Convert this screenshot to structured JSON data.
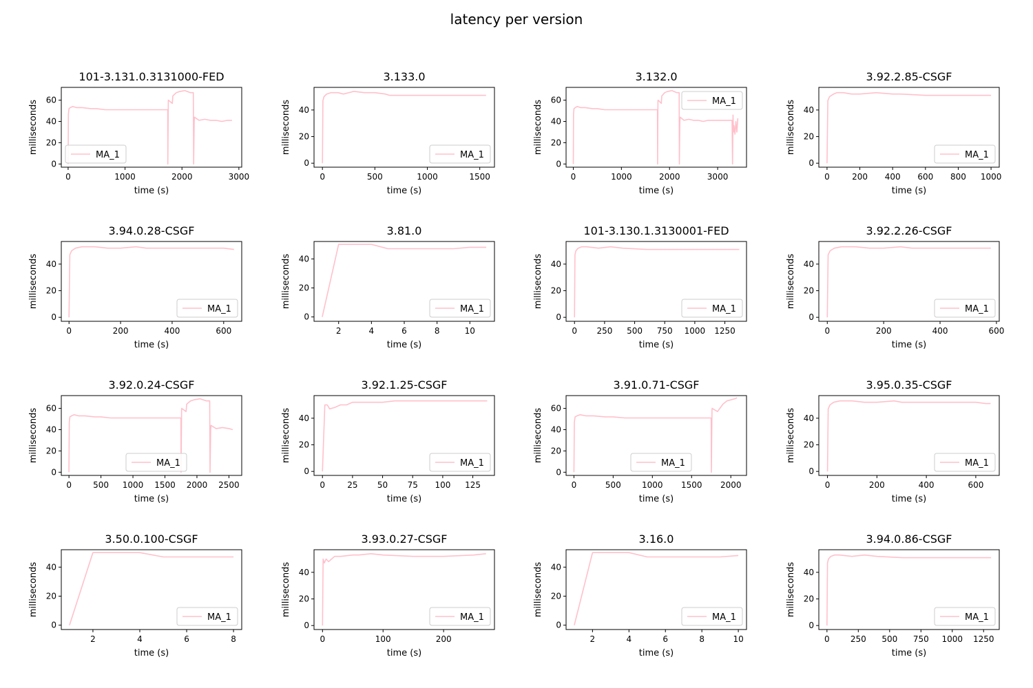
{
  "figure": {
    "title": "latency per version"
  },
  "colors": {
    "series": "#ffc0cb",
    "axes": "#000000",
    "legend_border": "#cccccc"
  },
  "chart_data": [
    {
      "type": "line",
      "title": "101-3.131.0.3131000-FED",
      "xlabel": "time (s)",
      "ylabel": "milliseconds",
      "xlim": [
        -120,
        3050
      ],
      "ylim": [
        -3,
        72
      ],
      "xticks": [
        0,
        1000,
        2000,
        3000
      ],
      "yticks": [
        0,
        20,
        40,
        60
      ],
      "legend": "lower-left",
      "series": [
        {
          "name": "MA_1",
          "x": [
            0,
            5,
            15,
            40,
            80,
            150,
            250,
            400,
            500,
            650,
            1750,
            1752,
            1760,
            1762,
            1830,
            1840,
            1900,
            1950,
            2050,
            2150,
            2200,
            2205,
            2215,
            2220,
            2300,
            2400,
            2500,
            2600,
            2700,
            2800,
            2880
          ],
          "y": [
            0,
            47,
            52,
            53,
            54,
            53,
            53,
            52,
            52,
            51,
            51,
            0,
            59,
            60,
            57,
            64,
            67,
            68,
            69,
            67,
            67,
            0,
            40,
            44,
            41,
            42,
            41,
            41,
            40,
            41,
            41
          ]
        }
      ]
    },
    {
      "type": "line",
      "title": "3.133.0",
      "xlabel": "time (s)",
      "ylabel": "milliseconds",
      "xlim": [
        -80,
        1640
      ],
      "ylim": [
        -3,
        57
      ],
      "xticks": [
        0,
        500,
        1000,
        1500
      ],
      "yticks": [
        0,
        20,
        40
      ],
      "legend": "lower-right",
      "series": [
        {
          "name": "MA_1",
          "x": [
            0,
            5,
            15,
            40,
            80,
            150,
            200,
            300,
            400,
            500,
            600,
            640,
            800,
            1000,
            1200,
            1400,
            1560
          ],
          "y": [
            0,
            47,
            50,
            52,
            53,
            53,
            52,
            54,
            53,
            53,
            52,
            51,
            51,
            51,
            51,
            51,
            51
          ]
        }
      ]
    },
    {
      "type": "line",
      "title": "3.132.0",
      "xlabel": "time (s)",
      "ylabel": "milliseconds",
      "xlim": [
        -150,
        3600
      ],
      "ylim": [
        -3,
        72
      ],
      "xticks": [
        0,
        1000,
        2000,
        3000
      ],
      "yticks": [
        0,
        20,
        40,
        60
      ],
      "legend": "upper-right",
      "series": [
        {
          "name": "MA_1",
          "x": [
            0,
            5,
            15,
            40,
            80,
            150,
            250,
            400,
            500,
            650,
            1750,
            1752,
            1760,
            1762,
            1830,
            1840,
            1900,
            1950,
            2050,
            2150,
            2200,
            2205,
            2215,
            2220,
            2300,
            2400,
            2500,
            2600,
            2700,
            2800,
            3000,
            3200,
            3300,
            3310,
            3320,
            3330,
            3340,
            3360,
            3380,
            3400,
            3420
          ],
          "y": [
            0,
            47,
            52,
            53,
            54,
            53,
            53,
            52,
            52,
            51,
            51,
            0,
            59,
            60,
            57,
            64,
            67,
            68,
            69,
            67,
            67,
            0,
            40,
            44,
            41,
            42,
            41,
            41,
            40,
            41,
            41,
            41,
            41,
            0,
            46,
            30,
            36,
            28,
            40,
            30,
            43
          ]
        }
      ]
    },
    {
      "type": "line",
      "title": "3.92.2.85-CSGF",
      "xlabel": "time (s)",
      "ylabel": "milliseconds",
      "xlim": [
        -50,
        1050
      ],
      "ylim": [
        -3,
        57
      ],
      "xticks": [
        0,
        200,
        400,
        600,
        800,
        1000
      ],
      "yticks": [
        0,
        20,
        40
      ],
      "legend": "lower-right",
      "series": [
        {
          "name": "MA_1",
          "x": [
            0,
            5,
            15,
            40,
            60,
            100,
            150,
            200,
            300,
            400,
            450,
            600,
            700,
            800,
            1000
          ],
          "y": [
            0,
            47,
            50,
            52,
            53,
            53,
            52,
            52,
            53,
            52,
            52,
            51,
            51,
            51,
            51
          ]
        }
      ]
    },
    {
      "type": "line",
      "title": "3.94.0.28-CSGF",
      "xlabel": "time (s)",
      "ylabel": "milliseconds",
      "xlim": [
        -30,
        670
      ],
      "ylim": [
        -3,
        57
      ],
      "xticks": [
        0,
        200,
        400,
        600
      ],
      "yticks": [
        0,
        20,
        40
      ],
      "legend": "lower-right",
      "series": [
        {
          "name": "MA_1",
          "x": [
            0,
            3,
            10,
            25,
            50,
            100,
            150,
            200,
            260,
            300,
            400,
            500,
            600,
            640
          ],
          "y": [
            0,
            47,
            50,
            52,
            53,
            53,
            52,
            52,
            53,
            52,
            52,
            52,
            52,
            51
          ]
        }
      ]
    },
    {
      "type": "line",
      "title": "3.81.0",
      "xlabel": "time (s)",
      "ylabel": "milliseconds",
      "xlim": [
        0.5,
        11.5
      ],
      "ylim": [
        -3,
        52
      ],
      "xticks": [
        2,
        4,
        6,
        8,
        10
      ],
      "yticks": [
        0,
        20,
        40
      ],
      "legend": "lower-right",
      "series": [
        {
          "name": "MA_1",
          "x": [
            1,
            2,
            3,
            4,
            5,
            6,
            7,
            8,
            9,
            10,
            11
          ],
          "y": [
            0,
            50,
            50,
            50,
            47,
            47,
            47,
            47,
            47,
            48,
            48
          ]
        }
      ]
    },
    {
      "type": "line",
      "title": "101-3.130.1.3130001-FED",
      "xlabel": "time (s)",
      "ylabel": "milliseconds",
      "xlim": [
        -70,
        1430
      ],
      "ylim": [
        -3,
        57
      ],
      "xticks": [
        0,
        250,
        500,
        750,
        1000,
        1250
      ],
      "yticks": [
        0,
        20,
        40
      ],
      "legend": "lower-right",
      "series": [
        {
          "name": "MA_1",
          "x": [
            0,
            4,
            12,
            30,
            60,
            100,
            200,
            300,
            400,
            600,
            800,
            1000,
            1200,
            1370
          ],
          "y": [
            0,
            47,
            50,
            52,
            53,
            53,
            52,
            53,
            52,
            51,
            51,
            51,
            51,
            51
          ]
        }
      ]
    },
    {
      "type": "line",
      "title": "3.92.2.26-CSGF",
      "xlabel": "time (s)",
      "ylabel": "milliseconds",
      "xlim": [
        -30,
        610
      ],
      "ylim": [
        -3,
        57
      ],
      "xticks": [
        0,
        200,
        400,
        600
      ],
      "yticks": [
        0,
        20,
        40
      ],
      "legend": "lower-right",
      "series": [
        {
          "name": "MA_1",
          "x": [
            0,
            3,
            10,
            25,
            50,
            100,
            150,
            200,
            260,
            300,
            400,
            500,
            580
          ],
          "y": [
            0,
            47,
            50,
            52,
            53,
            53,
            52,
            52,
            53,
            52,
            52,
            52,
            52
          ]
        }
      ]
    },
    {
      "type": "line",
      "title": "3.92.0.24-CSGF",
      "xlabel": "time (s)",
      "ylabel": "milliseconds",
      "xlim": [
        -120,
        2700
      ],
      "ylim": [
        -3,
        72
      ],
      "xticks": [
        0,
        500,
        1000,
        1500,
        2000,
        2500
      ],
      "yticks": [
        0,
        20,
        40,
        60
      ],
      "legend": "lower-center",
      "series": [
        {
          "name": "MA_1",
          "x": [
            0,
            5,
            15,
            40,
            80,
            150,
            250,
            400,
            500,
            650,
            1750,
            1752,
            1760,
            1762,
            1830,
            1840,
            1900,
            1950,
            2050,
            2150,
            2200,
            2205,
            2215,
            2220,
            2300,
            2400,
            2500,
            2560
          ],
          "y": [
            0,
            47,
            52,
            53,
            54,
            53,
            53,
            52,
            52,
            51,
            51,
            0,
            59,
            60,
            57,
            64,
            67,
            68,
            69,
            67,
            67,
            0,
            40,
            44,
            41,
            42,
            41,
            40
          ]
        }
      ]
    },
    {
      "type": "line",
      "title": "3.92.1.25-CSGF",
      "xlabel": "time (s)",
      "ylabel": "milliseconds",
      "xlim": [
        -7,
        143
      ],
      "ylim": [
        -3,
        57
      ],
      "xticks": [
        0,
        25,
        50,
        75,
        100,
        125
      ],
      "yticks": [
        0,
        20,
        40
      ],
      "legend": "lower-right",
      "series": [
        {
          "name": "MA_1",
          "x": [
            0,
            2,
            4,
            6,
            10,
            15,
            20,
            25,
            30,
            40,
            50,
            60,
            70,
            80,
            90,
            100,
            110,
            120,
            130,
            137
          ],
          "y": [
            0,
            50,
            50,
            47,
            48,
            50,
            50,
            52,
            52,
            52,
            52,
            53,
            53,
            53,
            53,
            53,
            53,
            53,
            53,
            53
          ]
        }
      ]
    },
    {
      "type": "line",
      "title": "3.91.0.71-CSGF",
      "xlabel": "time (s)",
      "ylabel": "milliseconds",
      "xlim": [
        -100,
        2200
      ],
      "ylim": [
        -3,
        72
      ],
      "xticks": [
        0,
        500,
        1000,
        1500,
        2000
      ],
      "yticks": [
        0,
        20,
        40,
        60
      ],
      "legend": "lower-center",
      "series": [
        {
          "name": "MA_1",
          "x": [
            0,
            5,
            15,
            40,
            80,
            150,
            250,
            400,
            500,
            650,
            1750,
            1752,
            1760,
            1762,
            1830,
            1840,
            1900,
            1950,
            2000,
            2050,
            2080
          ],
          "y": [
            0,
            47,
            52,
            53,
            54,
            53,
            53,
            52,
            52,
            51,
            51,
            0,
            59,
            60,
            57,
            58,
            64,
            67,
            68,
            69,
            70
          ]
        }
      ]
    },
    {
      "type": "line",
      "title": "3.95.0.35-CSGF",
      "xlabel": "time (s)",
      "ylabel": "milliseconds",
      "xlim": [
        -35,
        695
      ],
      "ylim": [
        -3,
        57
      ],
      "xticks": [
        0,
        200,
        400,
        600
      ],
      "yticks": [
        0,
        20,
        40
      ],
      "legend": "lower-right",
      "series": [
        {
          "name": "MA_1",
          "x": [
            0,
            3,
            10,
            25,
            50,
            100,
            150,
            200,
            270,
            300,
            400,
            500,
            600,
            640,
            660
          ],
          "y": [
            0,
            47,
            50,
            52,
            53,
            53,
            52,
            52,
            53,
            52,
            52,
            52,
            52,
            51,
            51
          ]
        }
      ]
    },
    {
      "type": "line",
      "title": "3.50.0.100-CSGF",
      "xlabel": "time (s)",
      "ylabel": "milliseconds",
      "xlim": [
        0.65,
        8.35
      ],
      "ylim": [
        -3,
        52
      ],
      "xticks": [
        2,
        4,
        6,
        8
      ],
      "yticks": [
        0,
        20,
        40
      ],
      "legend": "lower-right",
      "series": [
        {
          "name": "MA_1",
          "x": [
            1,
            2,
            3,
            4,
            5,
            6,
            7,
            8
          ],
          "y": [
            0,
            50,
            50,
            50,
            47,
            47,
            47,
            47
          ]
        }
      ]
    },
    {
      "type": "line",
      "title": "3.93.0.27-CSGF",
      "xlabel": "time (s)",
      "ylabel": "milliseconds",
      "xlim": [
        -14,
        284
      ],
      "ylim": [
        -3,
        57
      ],
      "xticks": [
        0,
        100,
        200
      ],
      "yticks": [
        0,
        20,
        40
      ],
      "legend": "lower-right",
      "series": [
        {
          "name": "MA_1",
          "x": [
            0,
            1,
            3,
            6,
            10,
            15,
            20,
            30,
            50,
            60,
            80,
            100,
            150,
            200,
            250,
            270
          ],
          "y": [
            0,
            50,
            47,
            50,
            48,
            50,
            52,
            52,
            53,
            53,
            54,
            53,
            52,
            52,
            53,
            54
          ]
        }
      ]
    },
    {
      "type": "line",
      "title": "3.16.0",
      "xlabel": "time (s)",
      "ylabel": "milliseconds",
      "xlim": [
        0.55,
        10.45
      ],
      "ylim": [
        -3,
        52
      ],
      "xticks": [
        2,
        4,
        6,
        8,
        10
      ],
      "yticks": [
        0,
        20,
        40
      ],
      "legend": "lower-right",
      "series": [
        {
          "name": "MA_1",
          "x": [
            1,
            2,
            3,
            4,
            5,
            6,
            7,
            8,
            9,
            10
          ],
          "y": [
            0,
            50,
            50,
            50,
            47,
            47,
            47,
            47,
            47,
            48
          ]
        }
      ]
    },
    {
      "type": "line",
      "title": "3.94.0.86-CSGF",
      "xlabel": "time (s)",
      "ylabel": "milliseconds",
      "xlim": [
        -65,
        1375
      ],
      "ylim": [
        -3,
        57
      ],
      "xticks": [
        0,
        250,
        500,
        750,
        1000,
        1250
      ],
      "yticks": [
        0,
        20,
        40
      ],
      "legend": "lower-right",
      "series": [
        {
          "name": "MA_1",
          "x": [
            0,
            4,
            12,
            30,
            60,
            100,
            200,
            300,
            400,
            600,
            800,
            1000,
            1200,
            1310
          ],
          "y": [
            0,
            47,
            50,
            52,
            53,
            53,
            52,
            53,
            52,
            51,
            51,
            51,
            51,
            51
          ]
        }
      ]
    }
  ]
}
